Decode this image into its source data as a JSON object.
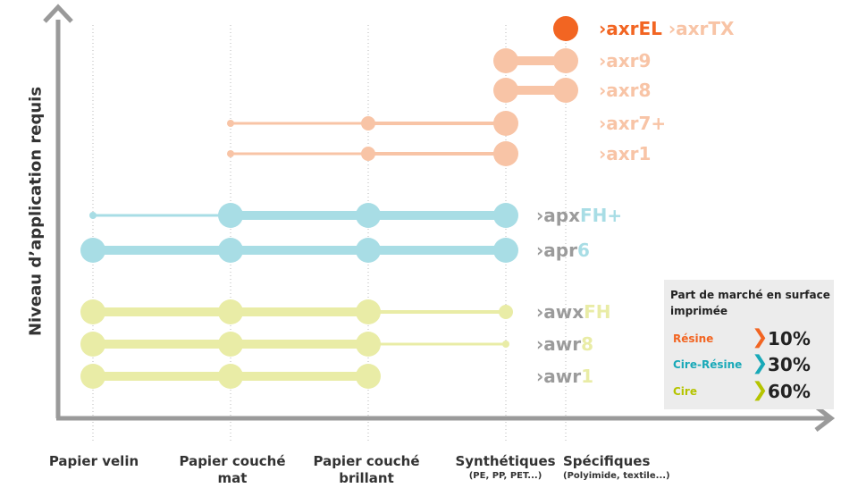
{
  "chart_data": {
    "type": "range-dot",
    "ylabel": "Niveau d’application requis",
    "categories": [
      {
        "main": "Papier velin",
        "sub": ""
      },
      {
        "main": "Papier couché mat",
        "sub": ""
      },
      {
        "main": "Papier couché brillant",
        "sub": ""
      },
      {
        "main": "Synthétiques",
        "sub": "(PE, PP, PET...)"
      },
      {
        "main": "Spécifiques",
        "sub": "(Polyimide, textile...)"
      }
    ],
    "series": [
      {
        "name": "axrEL axrTX",
        "group": "resine",
        "points": [
          {
            "cat": 4,
            "size": 3
          }
        ]
      },
      {
        "name": "axr9",
        "group": "resine",
        "points": [
          {
            "cat": 3,
            "size": 3
          },
          {
            "cat": 4,
            "size": 3
          }
        ]
      },
      {
        "name": "axr8",
        "group": "resine",
        "points": [
          {
            "cat": 3,
            "size": 3
          },
          {
            "cat": 4,
            "size": 3
          }
        ]
      },
      {
        "name": "axr7+",
        "group": "resine",
        "points": [
          {
            "cat": 1,
            "size": 1
          },
          {
            "cat": 2,
            "size": 2
          },
          {
            "cat": 3,
            "size": 3
          }
        ]
      },
      {
        "name": "axr1",
        "group": "resine",
        "points": [
          {
            "cat": 1,
            "size": 1
          },
          {
            "cat": 2,
            "size": 2
          },
          {
            "cat": 3,
            "size": 3
          }
        ]
      },
      {
        "name": "apxFH+",
        "group": "cire_resine",
        "points": [
          {
            "cat": 0,
            "size": 1
          },
          {
            "cat": 1,
            "size": 3
          },
          {
            "cat": 2,
            "size": 3
          },
          {
            "cat": 3,
            "size": 3
          }
        ]
      },
      {
        "name": "apr6",
        "group": "cire_resine",
        "points": [
          {
            "cat": 0,
            "size": 3
          },
          {
            "cat": 1,
            "size": 3
          },
          {
            "cat": 2,
            "size": 3
          },
          {
            "cat": 3,
            "size": 3
          }
        ]
      },
      {
        "name": "awxFH",
        "group": "cire",
        "points": [
          {
            "cat": 0,
            "size": 3
          },
          {
            "cat": 1,
            "size": 3
          },
          {
            "cat": 2,
            "size": 3
          },
          {
            "cat": 3,
            "size": 2
          }
        ]
      },
      {
        "name": "awr8",
        "group": "cire",
        "points": [
          {
            "cat": 0,
            "size": 3
          },
          {
            "cat": 1,
            "size": 3
          },
          {
            "cat": 2,
            "size": 3
          },
          {
            "cat": 3,
            "size": 1
          }
        ]
      },
      {
        "name": "awr1",
        "group": "cire",
        "points": [
          {
            "cat": 0,
            "size": 3
          },
          {
            "cat": 1,
            "size": 3
          },
          {
            "cat": 2,
            "size": 3
          }
        ]
      }
    ],
    "colors": {
      "resine": "#f8c4a6",
      "resine_highlight": "#f26522",
      "cire_resine": "#a8dde5",
      "cire": "#e9eca6",
      "axis": "#9a9a9a",
      "label_gray": "#9b9b9b"
    }
  },
  "series_labels": [
    {
      "parts": [
        {
          "text": "axr",
          "color": "#f26522"
        },
        {
          "text": "EL",
          "color": "#f26522"
        },
        {
          "text": "   ",
          "color": "#ffffff"
        },
        {
          "text": "axr",
          "color": "#f8c4a6"
        },
        {
          "text": "TX",
          "color": "#f8c4a6"
        }
      ]
    },
    {
      "parts": [
        {
          "text": "axr",
          "color": "#f8c4a6"
        },
        {
          "text": "9",
          "color": "#f8c4a6"
        }
      ]
    },
    {
      "parts": [
        {
          "text": "axr",
          "color": "#f8c4a6"
        },
        {
          "text": "8",
          "color": "#f8c4a6"
        }
      ]
    },
    {
      "parts": [
        {
          "text": "axr",
          "color": "#f8c4a6"
        },
        {
          "text": "7+",
          "color": "#f8c4a6"
        }
      ]
    },
    {
      "parts": [
        {
          "text": "axr",
          "color": "#f8c4a6"
        },
        {
          "text": "1",
          "color": "#f8c4a6"
        }
      ]
    },
    {
      "parts": [
        {
          "text": "apx",
          "color": "#9b9b9b"
        },
        {
          "text": "FH+",
          "color": "#a8dde5"
        }
      ]
    },
    {
      "parts": [
        {
          "text": "apr",
          "color": "#9b9b9b"
        },
        {
          "text": "6",
          "color": "#a8dde5"
        }
      ]
    },
    {
      "parts": [
        {
          "text": "awx",
          "color": "#9b9b9b"
        },
        {
          "text": "FH",
          "color": "#e9eca6"
        }
      ]
    },
    {
      "parts": [
        {
          "text": "awr",
          "color": "#9b9b9b"
        },
        {
          "text": "8",
          "color": "#e9eca6"
        }
      ]
    },
    {
      "parts": [
        {
          "text": "awr",
          "color": "#9b9b9b"
        },
        {
          "text": "1",
          "color": "#e9eca6"
        }
      ]
    }
  ],
  "market_share": {
    "title": "Part de marché en surface imprimée",
    "rows": [
      {
        "name": "Résine",
        "value": "10%",
        "color": "#f26522"
      },
      {
        "name": "Cire-Résine",
        "value": "30%",
        "color": "#19a9b8"
      },
      {
        "name": "Cire",
        "value": "60%",
        "color": "#b5c400"
      }
    ]
  }
}
